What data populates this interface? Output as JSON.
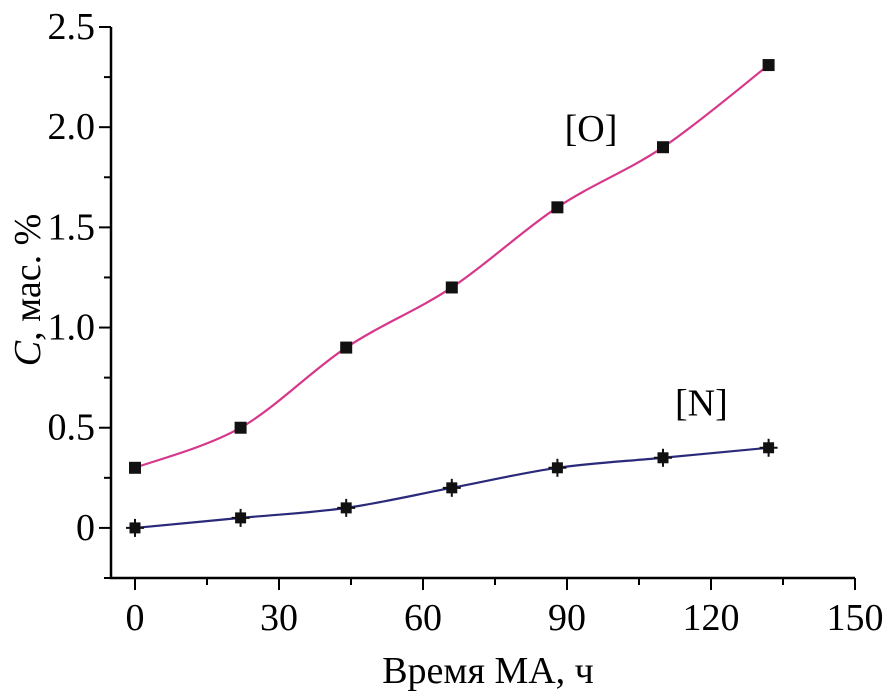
{
  "chart_data": {
    "type": "line",
    "title": "",
    "xlabel": "Время МА, ч",
    "ylabel_italic": "C",
    "ylabel_rest": ", мас. %",
    "xlim": [
      -5,
      150
    ],
    "ylim": [
      -0.25,
      2.5
    ],
    "x_ticks": [
      0,
      30,
      60,
      90,
      120,
      150
    ],
    "x_tick_labels": [
      "0",
      "30",
      "60",
      "90",
      "120",
      "150"
    ],
    "y_ticks": [
      0,
      0.5,
      1.0,
      1.5,
      2.0,
      2.5
    ],
    "y_tick_labels": [
      "0",
      "0.5",
      "1.0",
      "1.5",
      "2.0",
      "2.5"
    ],
    "grid": false,
    "series": [
      {
        "name": "[O]",
        "color": "#d6378a",
        "marker": "square",
        "x": [
          0,
          22,
          44,
          66,
          88,
          110,
          132
        ],
        "values": [
          0.3,
          0.5,
          0.9,
          1.2,
          1.6,
          1.9,
          2.31
        ],
        "label_anchor": [
          95,
          1.93
        ]
      },
      {
        "name": "[N]",
        "color": "#2b2a7a",
        "marker": "plus-square",
        "x": [
          0,
          22,
          44,
          66,
          88,
          110,
          132
        ],
        "values": [
          0.0,
          0.05,
          0.1,
          0.2,
          0.3,
          0.35,
          0.4
        ],
        "label_anchor": [
          118,
          0.56
        ]
      }
    ]
  }
}
